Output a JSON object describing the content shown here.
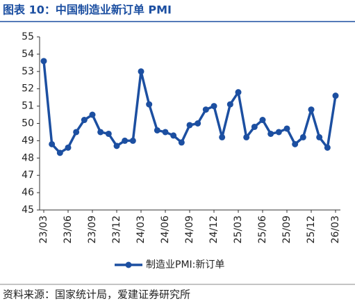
{
  "chart_data": {
    "type": "line",
    "title": "图表 10：中国制造业新订单 PMI",
    "categories": [
      "23/03",
      null,
      null,
      "23/06",
      null,
      null,
      "23/09",
      null,
      null,
      "23/12",
      null,
      null,
      "24/03",
      null,
      null,
      "24/06",
      null,
      null,
      "24/09",
      null,
      null,
      "24/12",
      null,
      null,
      "25/03",
      null,
      null,
      "25/06",
      null,
      null,
      "25/09",
      null,
      null,
      "25/12",
      null,
      null,
      "26/03"
    ],
    "series": [
      {
        "name": "制造业PMI:新订单",
        "color": "#1c4fa1",
        "values": [
          53.6,
          48.8,
          48.3,
          48.6,
          49.5,
          50.2,
          50.5,
          49.5,
          49.4,
          48.7,
          49.0,
          49.0,
          53.0,
          51.1,
          49.6,
          49.5,
          49.3,
          48.9,
          49.9,
          50.0,
          50.8,
          51.0,
          49.2,
          51.1,
          51.8,
          49.2,
          49.8,
          50.2,
          49.4,
          49.5,
          49.7,
          48.8,
          49.2,
          50.8,
          49.2,
          48.6,
          51.6
        ]
      }
    ],
    "ylim": [
      45,
      55
    ],
    "yticks": [
      45,
      46,
      47,
      48,
      49,
      50,
      51,
      52,
      53,
      54,
      55
    ]
  },
  "source": "资料来源：国家统计局，爱建证券研究所"
}
